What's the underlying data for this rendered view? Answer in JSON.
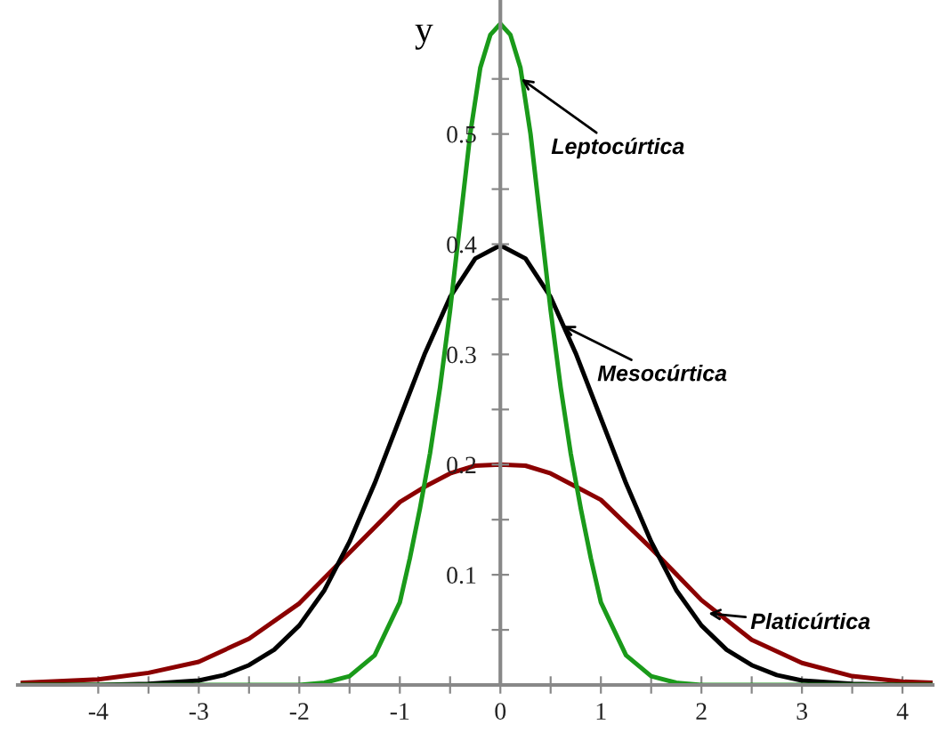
{
  "chart_data": {
    "type": "line",
    "ylabel": "y",
    "xlim": [
      -4.8,
      4.3
    ],
    "ylim": [
      0,
      0.62
    ],
    "xticks": [
      -4,
      {
        "value": -3.5,
        "label": null
      },
      -3,
      {
        "value": -2.5,
        "label": null
      },
      -2,
      {
        "value": -1.5,
        "label": null
      },
      -1,
      {
        "value": -0.5,
        "label": null
      },
      0,
      {
        "value": 0.5,
        "label": null
      },
      1,
      {
        "value": 1.5,
        "label": null
      },
      2,
      {
        "value": 2.5,
        "label": null
      },
      3,
      {
        "value": 3.5,
        "label": null
      },
      4
    ],
    "yticks": [
      {
        "value": 0.05,
        "label": null
      },
      0.1,
      {
        "value": 0.15,
        "label": null
      },
      0.2,
      {
        "value": 0.25,
        "label": null
      },
      0.3,
      {
        "value": 0.35,
        "label": null
      },
      0.4,
      {
        "value": 0.45,
        "label": null
      },
      0.5,
      {
        "value": 0.55,
        "label": null
      }
    ],
    "grid": false,
    "legend": false,
    "marker": "none",
    "line_style": "solid",
    "series": [
      {
        "color": "#8b0000",
        "x": [
          -4.75,
          -4,
          -3.5,
          -3,
          -2.5,
          -2,
          -1.5,
          -1,
          -0.75,
          -0.5,
          -0.25,
          0,
          0.25,
          0.5,
          0.75,
          1,
          1.5,
          2,
          2.5,
          3,
          3.5,
          4,
          4.3
        ],
        "values": [
          0.002,
          0.005,
          0.011,
          0.021,
          0.042,
          0.074,
          0.12,
          0.166,
          0.18,
          0.192,
          0.199,
          0.2,
          0.199,
          0.192,
          0.18,
          0.168,
          0.124,
          0.077,
          0.041,
          0.02,
          0.008,
          0.003,
          0.002
        ]
      },
      {
        "color": "#000000",
        "x": [
          -4.75,
          -4,
          -3.5,
          -3,
          -2.75,
          -2.5,
          -2.25,
          -2,
          -1.75,
          -1.5,
          -1.25,
          -1,
          -0.75,
          -0.5,
          -0.25,
          0,
          0.25,
          0.5,
          0.75,
          1,
          1.25,
          1.5,
          1.75,
          2,
          2.25,
          2.5,
          2.75,
          3,
          3.5,
          4,
          4.3
        ],
        "values": [
          0,
          0,
          0.001,
          0.004,
          0.009,
          0.018,
          0.032,
          0.054,
          0.086,
          0.13,
          0.183,
          0.242,
          0.301,
          0.352,
          0.387,
          0.399,
          0.387,
          0.352,
          0.301,
          0.242,
          0.183,
          0.13,
          0.086,
          0.054,
          0.032,
          0.018,
          0.009,
          0.004,
          0.001,
          0,
          0
        ]
      },
      {
        "color": "#1a9a1a",
        "x": [
          -4.75,
          -2,
          -1.75,
          -1.5,
          -1.25,
          -1,
          -0.9,
          -0.8,
          -0.7,
          -0.6,
          -0.5,
          -0.4,
          -0.3,
          -0.2,
          -0.1,
          0,
          0.1,
          0.2,
          0.3,
          0.4,
          0.5,
          0.6,
          0.7,
          0.8,
          0.9,
          1,
          1.25,
          1.5,
          1.75,
          2,
          4.3
        ],
        "values": [
          0,
          0,
          0.002,
          0.008,
          0.027,
          0.075,
          0.115,
          0.16,
          0.21,
          0.27,
          0.34,
          0.42,
          0.5,
          0.56,
          0.59,
          0.6,
          0.59,
          0.56,
          0.5,
          0.42,
          0.34,
          0.27,
          0.21,
          0.16,
          0.115,
          0.075,
          0.027,
          0.008,
          0.002,
          0,
          0
        ]
      }
    ],
    "annotations": [
      {
        "text": "Leptocúrtica",
        "x": 0.21,
        "y": 0.55
      },
      {
        "text": "Mesocúrtica",
        "x": 0.62,
        "y": 0.326
      },
      {
        "text": "Platicúrtica",
        "x": 2.07,
        "y": 0.065
      }
    ]
  }
}
